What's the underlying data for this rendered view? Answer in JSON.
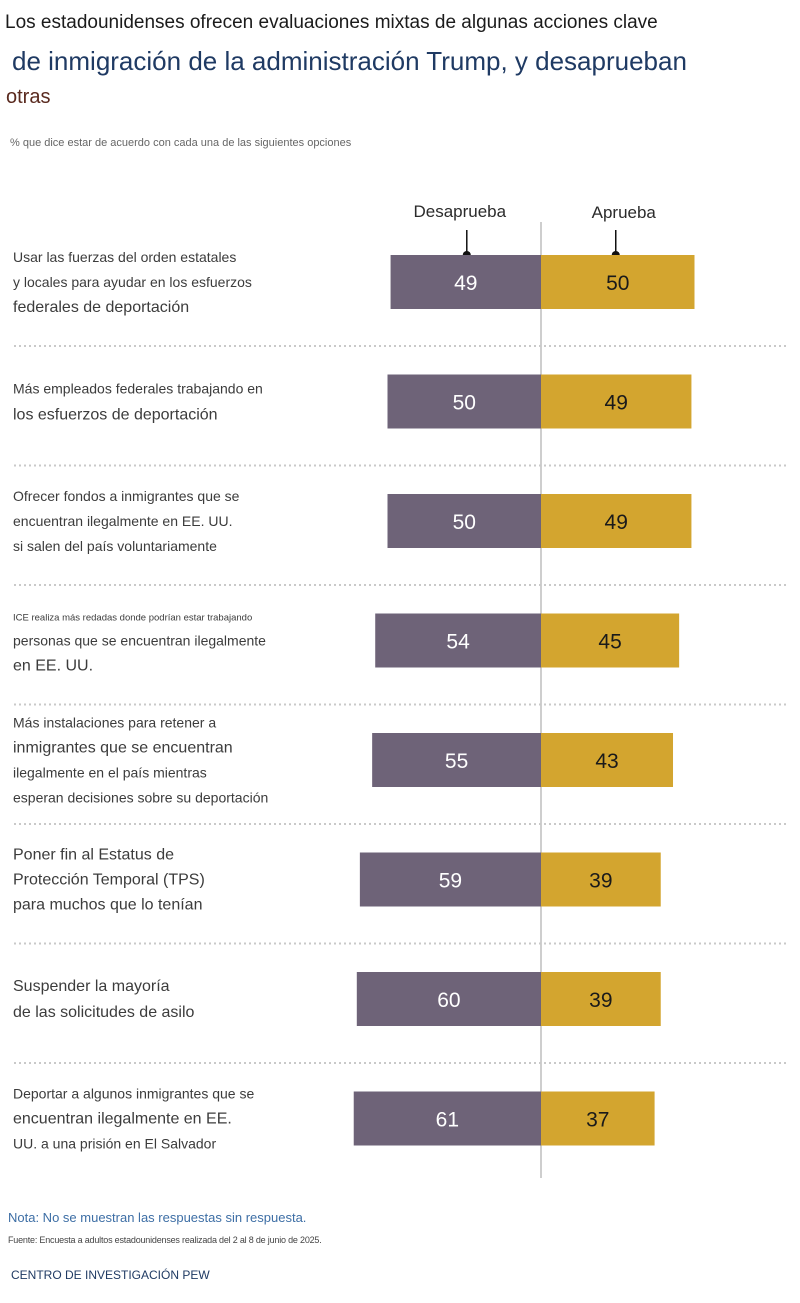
{
  "header": {
    "title_line1": "Los estadounidenses ofrecen evaluaciones mixtas de algunas acciones clave",
    "title_line2": "de inmigración de la administración Trump, y desaprueban",
    "title_line3": "otras",
    "subtitle": "% que dice estar de acuerdo con cada una de las siguientes opciones"
  },
  "colors": {
    "disapprove": "#6e6378",
    "approve": "#d3a52f",
    "disapprove_text": "#ffffff",
    "approve_text": "#1a1a1a",
    "label_text": "#3c3c3c",
    "divider": "#c9c9c9",
    "axis": "#bdbdbd"
  },
  "chart_data": {
    "type": "bar",
    "orientation": "horizontal-diverging",
    "categories": [
      [
        "Usar las fuerzas del orden estatales",
        "y locales para ayudar en los esfuerzos",
        "federales de deportación"
      ],
      [
        "Más empleados federales trabajando en",
        "los esfuerzos de deportación"
      ],
      [
        "Ofrecer fondos a inmigrantes que se",
        "encuentran ilegalmente en EE. UU.",
        "si salen del país voluntariamente"
      ],
      [
        "ICE realiza más redadas donde podrían estar trabajando",
        "personas que se encuentran ilegalmente",
        "en EE. UU."
      ],
      [
        "Más instalaciones para retener a",
        "inmigrantes que se encuentran",
        "ilegalmente en el país mientras",
        "esperan decisiones sobre su deportación"
      ],
      [
        "Poner fin al Estatus de",
        "Protección Temporal (TPS)",
        "para muchos que lo tenían"
      ],
      [
        "Suspender la mayoría",
        "de las solicitudes de asilo"
      ],
      [
        "Deportar a algunos inmigrantes que se",
        "encuentran ilegalmente en EE.",
        "UU. a una prisión en El Salvador"
      ]
    ],
    "series": [
      {
        "name": "Desaprueba",
        "values": [
          49,
          50,
          50,
          54,
          55,
          59,
          60,
          61
        ]
      },
      {
        "name": "Aprueba",
        "values": [
          50,
          49,
          49,
          45,
          43,
          39,
          39,
          37
        ]
      }
    ],
    "legend": [
      "Desaprueba",
      "Aprueba"
    ],
    "xlim": [
      0,
      100
    ]
  },
  "footer": {
    "note": "Nota: No se muestran las respuestas sin respuesta.",
    "source": "Fuente: Encuesta a adultos estadounidenses realizada del 2 al 8 de junio de 2025.",
    "brand": "CENTRO DE INVESTIGACIÓN PEW"
  }
}
